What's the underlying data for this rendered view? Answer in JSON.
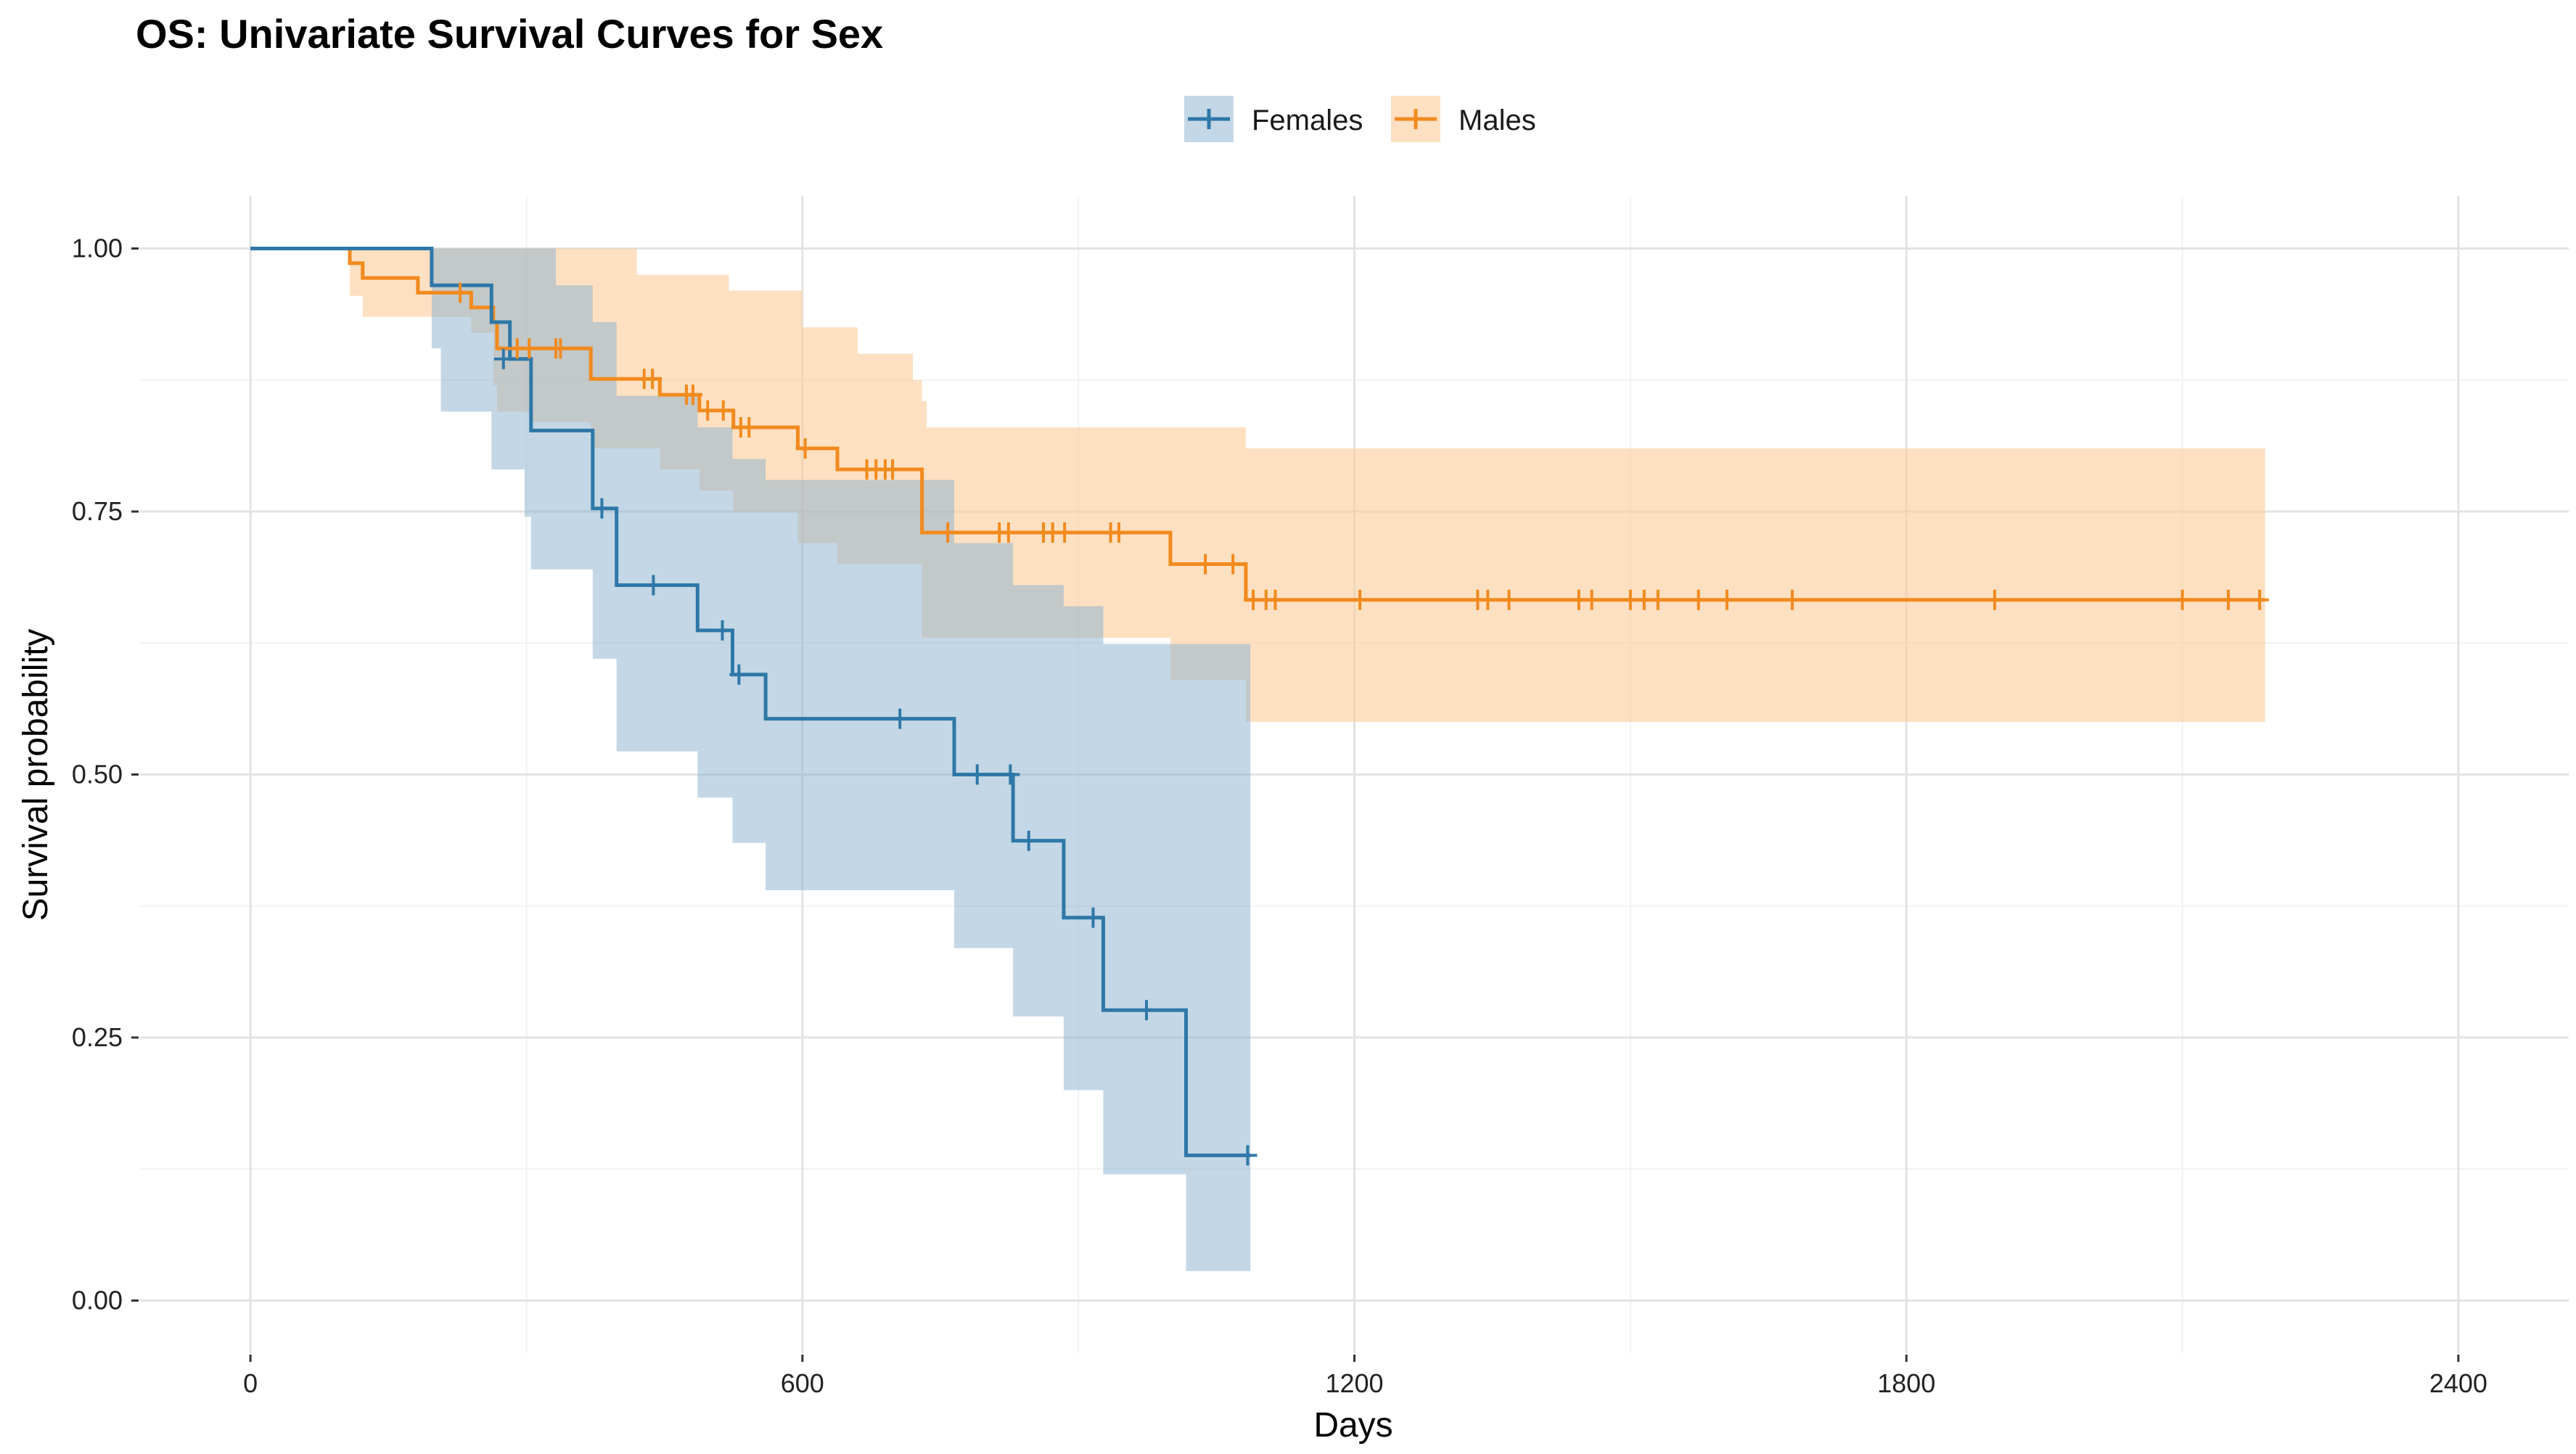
{
  "chart_data": {
    "type": "line",
    "subtype": "kaplan-meier-step",
    "title": "OS: Univariate Survival Curves for Sex",
    "xlabel": "Days",
    "ylabel": "Survival probability",
    "xlim": [
      -120,
      2520
    ],
    "ylim": [
      -0.05,
      1.05
    ],
    "x_ticks": [
      0,
      600,
      1200,
      1800,
      2400
    ],
    "x_tick_labels": [
      "0",
      "600",
      "1200",
      "1800",
      "2400"
    ],
    "y_ticks": [
      0,
      0.25,
      0.5,
      0.75,
      1.0
    ],
    "y_tick_labels": [
      "0.00",
      "0.25",
      "0.50",
      "0.75",
      "1.00"
    ],
    "grid": true,
    "legend_position": "top",
    "series": [
      {
        "name": "Females",
        "color": "#2E78A8",
        "fill_color": "#8AAFCD",
        "steps": [
          [
            0,
            1.0
          ],
          [
            197,
            1.0
          ],
          [
            197,
            0.965
          ],
          [
            262,
            0.965
          ],
          [
            262,
            0.93
          ],
          [
            282,
            0.93
          ],
          [
            282,
            0.895
          ],
          [
            305,
            0.895
          ],
          [
            305,
            0.827
          ],
          [
            372,
            0.827
          ],
          [
            372,
            0.753
          ],
          [
            398,
            0.753
          ],
          [
            398,
            0.68
          ],
          [
            486,
            0.68
          ],
          [
            486,
            0.637
          ],
          [
            524,
            0.637
          ],
          [
            524,
            0.595
          ],
          [
            560,
            0.595
          ],
          [
            560,
            0.553
          ],
          [
            765,
            0.553
          ],
          [
            765,
            0.5
          ],
          [
            829,
            0.5
          ],
          [
            829,
            0.437
          ],
          [
            884,
            0.437
          ],
          [
            884,
            0.364
          ],
          [
            927,
            0.364
          ],
          [
            927,
            0.276
          ],
          [
            1017,
            0.276
          ],
          [
            1017,
            0.138
          ],
          [
            1087,
            0.138
          ]
        ],
        "ci_upper": [
          [
            0,
            1.0
          ],
          [
            197,
            1.0
          ],
          [
            262,
            1.0
          ],
          [
            305,
            1.0
          ],
          [
            332,
            0.965
          ],
          [
            372,
            0.93
          ],
          [
            398,
            0.86
          ],
          [
            486,
            0.83
          ],
          [
            524,
            0.8
          ],
          [
            560,
            0.78
          ],
          [
            720,
            0.78
          ],
          [
            765,
            0.72
          ],
          [
            829,
            0.68
          ],
          [
            884,
            0.66
          ],
          [
            927,
            0.624
          ],
          [
            1087,
            0.624
          ]
        ],
        "ci_lower": [
          [
            0,
            1.0
          ],
          [
            197,
            0.905
          ],
          [
            207,
            0.845
          ],
          [
            262,
            0.79
          ],
          [
            298,
            0.745
          ],
          [
            305,
            0.695
          ],
          [
            372,
            0.61
          ],
          [
            398,
            0.522
          ],
          [
            486,
            0.478
          ],
          [
            524,
            0.435
          ],
          [
            560,
            0.39
          ],
          [
            765,
            0.335
          ],
          [
            829,
            0.27
          ],
          [
            884,
            0.2
          ],
          [
            927,
            0.12
          ],
          [
            1017,
            0.028
          ],
          [
            1087,
            0.028
          ]
        ],
        "censor_points": [
          [
            275,
            0.895
          ],
          [
            382,
            0.753
          ],
          [
            438,
            0.68
          ],
          [
            513,
            0.637
          ],
          [
            531,
            0.595
          ],
          [
            706,
            0.553
          ],
          [
            790,
            0.5
          ],
          [
            826,
            0.5
          ],
          [
            846,
            0.437
          ],
          [
            916,
            0.364
          ],
          [
            974,
            0.276
          ],
          [
            1084,
            0.138
          ]
        ]
      },
      {
        "name": "Males",
        "color": "#F28A1E",
        "fill_color": "#FCCB99",
        "steps": [
          [
            0,
            1.0
          ],
          [
            108,
            1.0
          ],
          [
            108,
            0.986
          ],
          [
            122,
            0.986
          ],
          [
            122,
            0.972
          ],
          [
            182,
            0.972
          ],
          [
            182,
            0.958
          ],
          [
            240,
            0.958
          ],
          [
            240,
            0.944
          ],
          [
            264,
            0.944
          ],
          [
            264,
            0.93
          ],
          [
            268,
            0.93
          ],
          [
            268,
            0.905
          ],
          [
            370,
            0.905
          ],
          [
            370,
            0.876
          ],
          [
            445,
            0.876
          ],
          [
            445,
            0.861
          ],
          [
            488,
            0.861
          ],
          [
            488,
            0.846
          ],
          [
            525,
            0.846
          ],
          [
            525,
            0.83
          ],
          [
            595,
            0.83
          ],
          [
            595,
            0.81
          ],
          [
            638,
            0.81
          ],
          [
            638,
            0.79
          ],
          [
            730,
            0.79
          ],
          [
            730,
            0.73
          ],
          [
            1000,
            0.73
          ],
          [
            1000,
            0.7
          ],
          [
            1082,
            0.7
          ],
          [
            1082,
            0.666
          ],
          [
            2190,
            0.666
          ]
        ],
        "ci_upper": [
          [
            0,
            1.0
          ],
          [
            240,
            1.0
          ],
          [
            375,
            1.0
          ],
          [
            420,
            0.975
          ],
          [
            520,
            0.96
          ],
          [
            600,
            0.925
          ],
          [
            660,
            0.9
          ],
          [
            720,
            0.875
          ],
          [
            730,
            0.855
          ],
          [
            735,
            0.83
          ],
          [
            1000,
            0.83
          ],
          [
            1082,
            0.81
          ],
          [
            2190,
            0.81
          ]
        ],
        "ci_lower": [
          [
            0,
            1.0
          ],
          [
            108,
            0.955
          ],
          [
            122,
            0.935
          ],
          [
            240,
            0.92
          ],
          [
            264,
            0.87
          ],
          [
            268,
            0.845
          ],
          [
            305,
            0.835
          ],
          [
            370,
            0.81
          ],
          [
            445,
            0.79
          ],
          [
            488,
            0.77
          ],
          [
            525,
            0.75
          ],
          [
            595,
            0.72
          ],
          [
            638,
            0.7
          ],
          [
            730,
            0.63
          ],
          [
            1000,
            0.59
          ],
          [
            1082,
            0.55
          ],
          [
            2190,
            0.55
          ]
        ],
        "censor_points": [
          [
            228,
            0.958
          ],
          [
            290,
            0.905
          ],
          [
            303,
            0.905
          ],
          [
            332,
            0.905
          ],
          [
            337,
            0.905
          ],
          [
            428,
            0.876
          ],
          [
            437,
            0.876
          ],
          [
            474,
            0.861
          ],
          [
            481,
            0.861
          ],
          [
            497,
            0.846
          ],
          [
            514,
            0.846
          ],
          [
            533,
            0.83
          ],
          [
            542,
            0.83
          ],
          [
            603,
            0.81
          ],
          [
            670,
            0.79
          ],
          [
            680,
            0.79
          ],
          [
            690,
            0.79
          ],
          [
            698,
            0.79
          ],
          [
            758,
            0.73
          ],
          [
            814,
            0.73
          ],
          [
            824,
            0.73
          ],
          [
            862,
            0.73
          ],
          [
            872,
            0.73
          ],
          [
            885,
            0.73
          ],
          [
            935,
            0.73
          ],
          [
            944,
            0.73
          ],
          [
            1038,
            0.7
          ],
          [
            1068,
            0.7
          ],
          [
            1090,
            0.666
          ],
          [
            1104,
            0.666
          ],
          [
            1114,
            0.666
          ],
          [
            1206,
            0.666
          ],
          [
            1334,
            0.666
          ],
          [
            1345,
            0.666
          ],
          [
            1368,
            0.666
          ],
          [
            1444,
            0.666
          ],
          [
            1458,
            0.666
          ],
          [
            1500,
            0.666
          ],
          [
            1515,
            0.666
          ],
          [
            1530,
            0.666
          ],
          [
            1574,
            0.666
          ],
          [
            1605,
            0.666
          ],
          [
            1676,
            0.666
          ],
          [
            1896,
            0.666
          ],
          [
            2100,
            0.666
          ],
          [
            2150,
            0.666
          ],
          [
            2184,
            0.666
          ]
        ]
      }
    ]
  }
}
